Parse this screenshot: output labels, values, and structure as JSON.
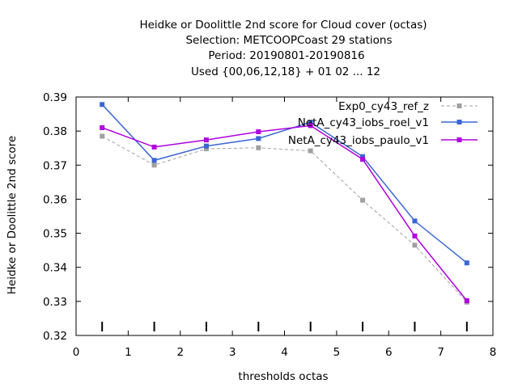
{
  "chart_data": {
    "type": "line",
    "title_lines": [
      "Heidke or Doolittle 2nd score  for Cloud cover (octas)",
      "Selection: METCOOPCoast     29 stations",
      "Period: 20190801-20190816",
      "Used {00,06,12,18} + 01 02 ... 12"
    ],
    "xlabel": "thresholds octas",
    "ylabel": "Heidke or Doolittle 2nd score",
    "xlim": [
      0,
      8
    ],
    "ylim": [
      0.32,
      0.39
    ],
    "xticks": [
      0,
      1,
      2,
      3,
      4,
      5,
      6,
      7,
      8
    ],
    "yticks": [
      0.32,
      0.33,
      0.34,
      0.35,
      0.36,
      0.37,
      0.38,
      0.39
    ],
    "ytick_labels": [
      "0.32",
      "0.33",
      "0.34",
      "0.35",
      "0.36",
      "0.37",
      "0.38",
      "0.39"
    ],
    "x": [
      0.5,
      1.5,
      2.5,
      3.5,
      4.5,
      5.5,
      6.5,
      7.5
    ],
    "threshold_markers_x": [
      0.5,
      1.5,
      2.5,
      3.5,
      4.5,
      5.5,
      6.5,
      7.5
    ],
    "grid": false,
    "legend_position": "top-right",
    "series": [
      {
        "name": "Exp0_cy43_ref_z",
        "color": "#a0a0a0",
        "dashed": true,
        "values": [
          0.3785,
          0.37,
          0.3748,
          0.3751,
          0.3742,
          0.3597,
          0.3465,
          0.3298
        ]
      },
      {
        "name": "NetA_cy43_iobs_roel_v1",
        "color": "#3a66d4",
        "dashed": false,
        "values": [
          0.3878,
          0.3714,
          0.3756,
          0.3778,
          0.3826,
          0.3725,
          0.3536,
          0.3413
        ]
      },
      {
        "name": "NetA_cy43_iobs_paulo_v1",
        "color": "#b000e0",
        "dashed": false,
        "values": [
          0.381,
          0.3753,
          0.3774,
          0.3798,
          0.3816,
          0.3717,
          0.3492,
          0.3302
        ]
      }
    ]
  }
}
